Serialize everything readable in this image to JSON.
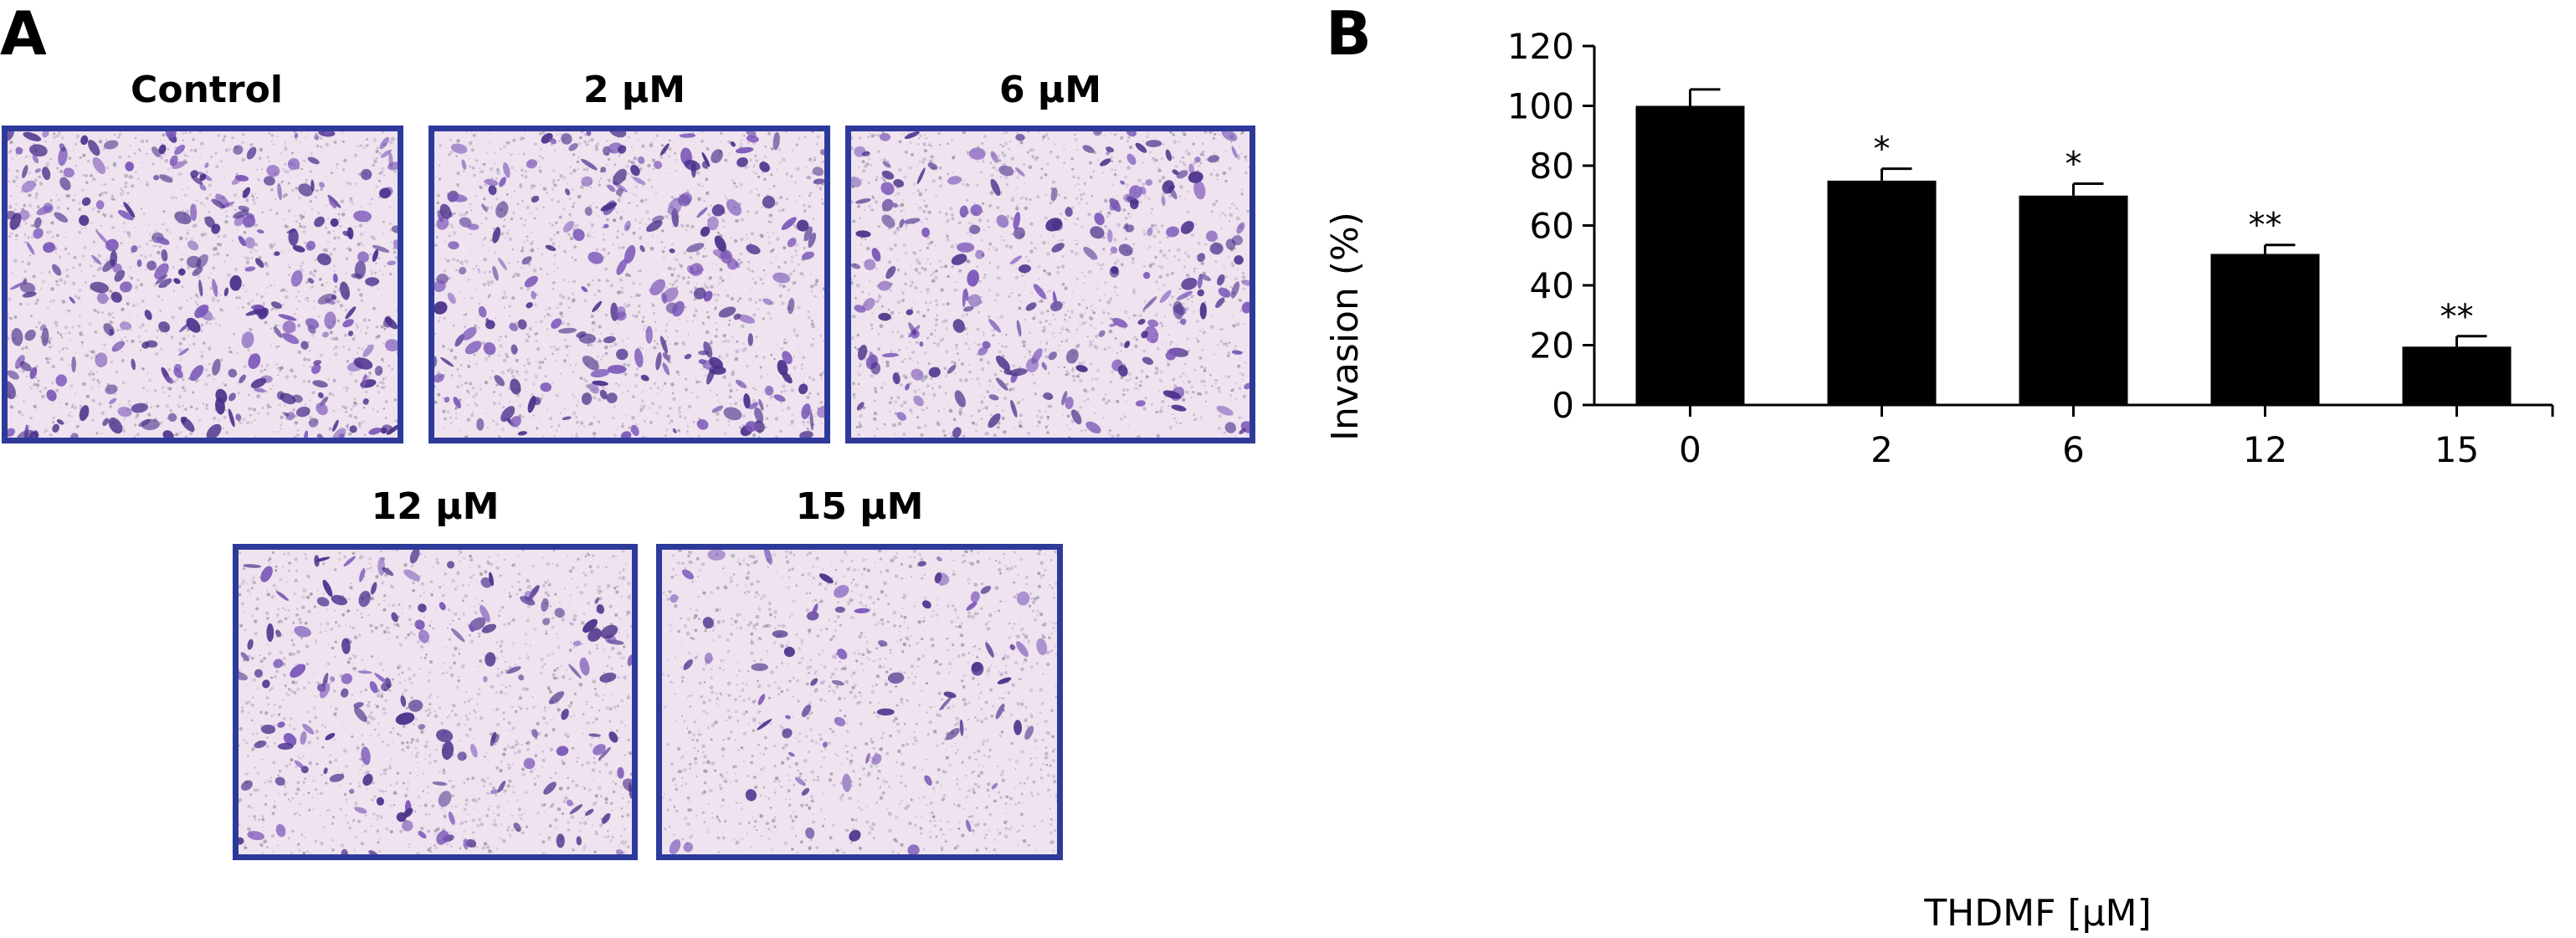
{
  "panels": {
    "a": {
      "letter": "A"
    },
    "b": {
      "letter": "B"
    }
  },
  "micrographs": [
    {
      "label": "Control",
      "density": 1.0
    },
    {
      "label": "2 μM",
      "density": 0.75
    },
    {
      "label": "6 μM",
      "density": 0.7
    },
    {
      "label": "12 μM",
      "density": 0.5
    },
    {
      "label": "15 μM",
      "density": 0.2
    }
  ],
  "colors": {
    "frame": "#2d3a9a",
    "stain_dark": "#4a2f8a",
    "stain_mid": "#7a55b8",
    "background_pink": "#efe3ef",
    "bar": "#000000"
  },
  "chart_data": {
    "type": "bar",
    "categories": [
      "0",
      "2",
      "6",
      "12",
      "15"
    ],
    "values": [
      100,
      75,
      70,
      50.5,
      19.5
    ],
    "errors": [
      5.5,
      4,
      4,
      3,
      3.5
    ],
    "significance": [
      "",
      "*",
      "*",
      "**",
      "**"
    ],
    "xlabel": "THDMF [μM]",
    "ylabel": "Invasion (%)",
    "ylim": [
      0,
      120
    ],
    "yticks": [
      0,
      20,
      40,
      60,
      80,
      100,
      120
    ],
    "grid": false,
    "legend": "none"
  }
}
